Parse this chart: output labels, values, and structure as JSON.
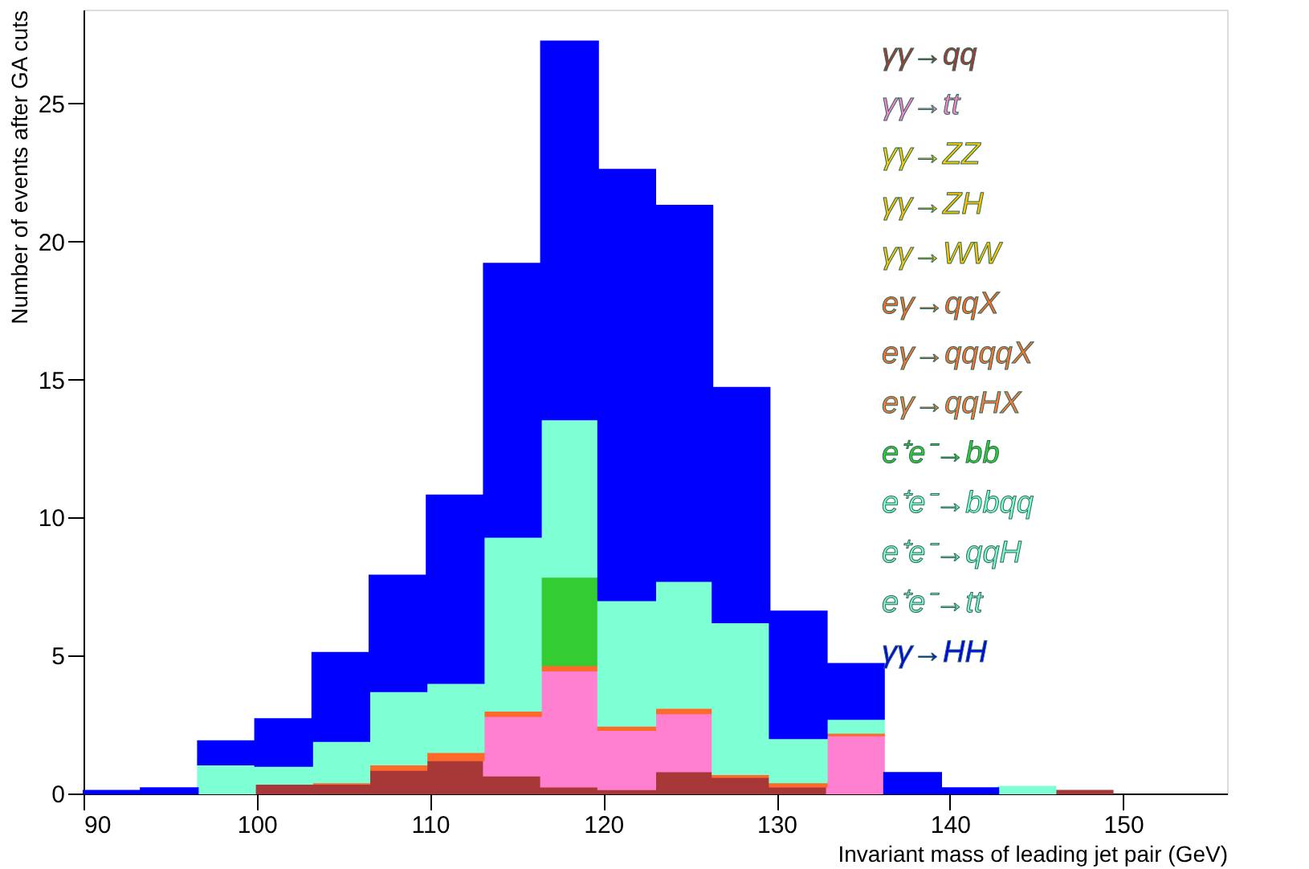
{
  "chart_data": {
    "type": "bar",
    "stacked": true,
    "xlabel": "Invariant mass of leading jet pair (GeV)",
    "ylabel": "Number of events after GA cuts",
    "x": [
      91.65,
      94.95,
      98.25,
      101.55,
      104.85,
      108.15,
      111.45,
      114.75,
      118.05,
      121.35,
      124.65,
      127.95,
      131.25,
      134.55,
      137.85,
      141.15,
      144.45,
      147.75,
      151.05,
      154.35
    ],
    "series": [
      {
        "name": "γγ→qq",
        "color": "#a83838",
        "values": [
          0,
          0,
          0,
          0.35,
          0.35,
          0.85,
          1.2,
          0.65,
          0.25,
          0.15,
          0.8,
          0.6,
          0.25,
          0,
          0,
          0,
          0,
          0.1,
          0,
          0
        ]
      },
      {
        "name": "γγ→tt",
        "color": "#ff80d0",
        "values": [
          0,
          0,
          0,
          0,
          0,
          0,
          0,
          2.15,
          4.2,
          2.15,
          2.1,
          0,
          0,
          2.1,
          0,
          0,
          0,
          0,
          0,
          0
        ]
      },
      {
        "name": "γγ→ZZ",
        "color": "#ffcc00",
        "values": [
          0,
          0,
          0,
          0,
          0,
          0,
          0,
          0,
          0,
          0,
          0,
          0,
          0,
          0,
          0,
          0,
          0,
          0,
          0,
          0
        ]
      },
      {
        "name": "γγ→ZH",
        "color": "#ffc000",
        "values": [
          0,
          0,
          0,
          0,
          0,
          0,
          0,
          0,
          0,
          0,
          0,
          0,
          0,
          0,
          0,
          0,
          0,
          0,
          0,
          0
        ]
      },
      {
        "name": "γγ→WW",
        "color": "#ffc400",
        "values": [
          0,
          0,
          0,
          0,
          0,
          0,
          0,
          0,
          0,
          0,
          0,
          0,
          0,
          0,
          0,
          0,
          0,
          0,
          0,
          0
        ]
      },
      {
        "name": "eγ→qqX",
        "color": "#ff6a2a",
        "values": [
          0,
          0,
          0,
          0,
          0.05,
          0.2,
          0.3,
          0.2,
          0.2,
          0.15,
          0.2,
          0.1,
          0.15,
          0.1,
          0,
          0,
          0,
          0,
          0,
          0
        ]
      },
      {
        "name": "eγ→qqqqX",
        "color": "#ff7030",
        "values": [
          0,
          0,
          0,
          0,
          0,
          0,
          0,
          0,
          0,
          0,
          0,
          0,
          0,
          0,
          0,
          0,
          0,
          0,
          0,
          0
        ]
      },
      {
        "name": "eγ→qqHX",
        "color": "#ff7a3a",
        "values": [
          0,
          0,
          0,
          0,
          0,
          0,
          0,
          0,
          0,
          0,
          0,
          0,
          0,
          0,
          0,
          0,
          0,
          0,
          0,
          0
        ]
      },
      {
        "name": "e⁺e⁻→bb",
        "color": "#33cc33",
        "values": [
          0,
          0,
          0,
          0,
          0,
          0,
          0,
          0,
          3.2,
          0,
          0,
          0,
          0,
          0,
          0,
          0,
          0,
          0,
          0,
          0
        ]
      },
      {
        "name": "e⁺e⁻→bbqq",
        "color": "#7fffd4",
        "values": [
          0,
          0,
          1.05,
          0.65,
          1.5,
          2.65,
          2.5,
          6.3,
          5.7,
          4.55,
          4.6,
          5.5,
          1.6,
          0.5,
          0,
          0,
          0.25,
          0,
          0,
          0
        ]
      },
      {
        "name": "e⁺e⁻→qqH",
        "color": "#7ff5d0",
        "values": [
          0,
          0,
          0,
          0,
          0,
          0,
          0,
          0,
          0,
          0,
          0,
          0,
          0,
          0,
          0,
          0,
          0,
          0,
          0,
          0
        ]
      },
      {
        "name": "e⁺e⁻→tt",
        "color": "#80f0d0",
        "values": [
          0,
          0,
          0,
          0,
          0,
          0,
          0,
          0,
          0,
          0,
          0,
          0,
          0,
          0,
          0,
          0,
          0,
          0,
          0,
          0
        ]
      },
      {
        "name": "γγ→HH",
        "color": "#0000ff",
        "values": [
          0.1,
          0.2,
          0.85,
          1.7,
          3.2,
          4.2,
          6.8,
          9.9,
          13.7,
          15.6,
          13.6,
          8.5,
          4.6,
          2.0,
          0.75,
          0.2,
          0,
          0,
          0,
          0
        ]
      }
    ],
    "xlim": [
      90,
      156
    ],
    "xticks": [
      90,
      100,
      110,
      120,
      130,
      140,
      150
    ],
    "ylim": [
      0,
      28.4
    ],
    "yticks": [
      0,
      5,
      10,
      15,
      20,
      25
    ],
    "grid": false,
    "legend": "top right"
  }
}
